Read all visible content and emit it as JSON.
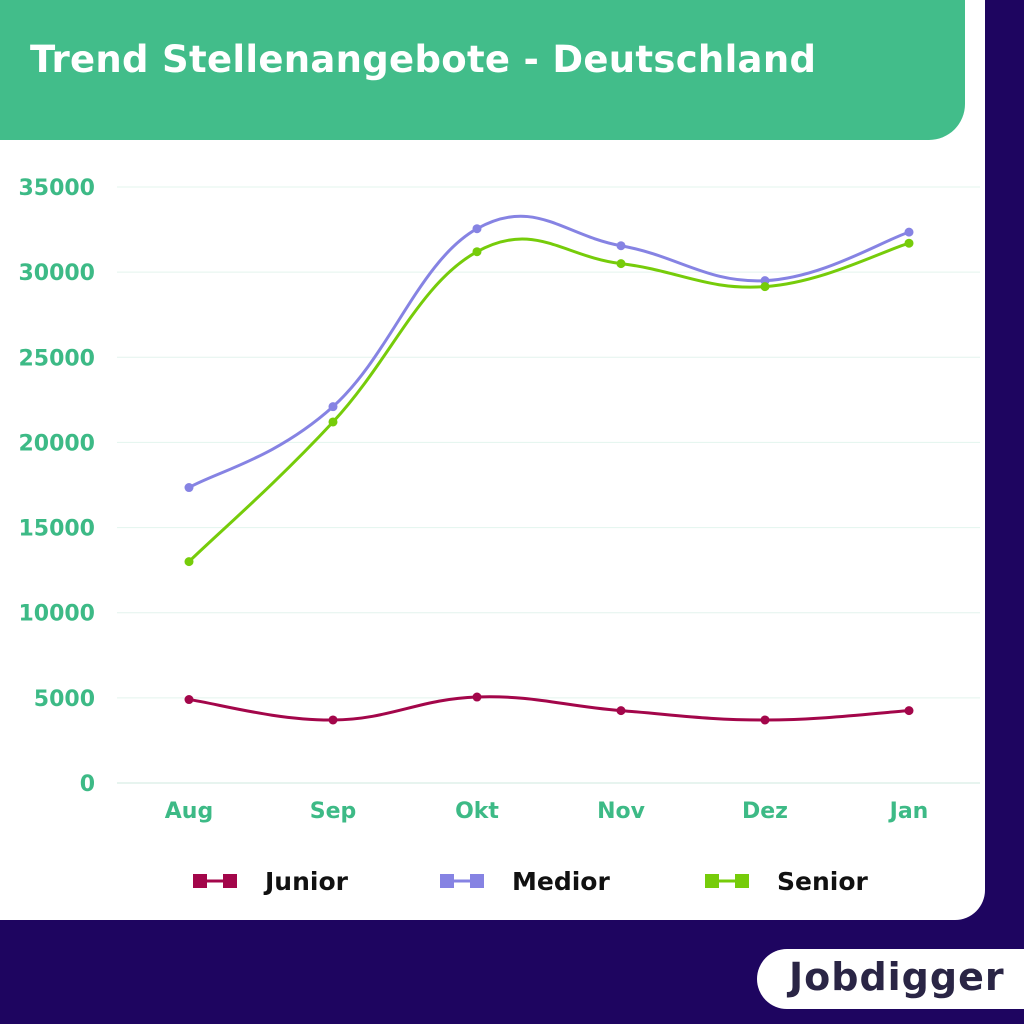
{
  "header": {
    "title": "Trend Stellenangebote - Deutschland"
  },
  "logo": {
    "text": "Jobdigger"
  },
  "colors": {
    "background": "#1e0560",
    "header": "#42bd8a",
    "axis_text": "#3dba86",
    "grid": "#e3f4ee"
  },
  "chart_data": {
    "type": "line",
    "title": "Trend Stellenangebote - Deutschland",
    "xlabel": "",
    "ylabel": "",
    "categories": [
      "Aug",
      "Sep",
      "Okt",
      "Nov",
      "Dez",
      "Jan"
    ],
    "ylim": [
      0,
      35000
    ],
    "yticks": [
      0,
      5000,
      10000,
      15000,
      20000,
      25000,
      30000,
      35000
    ],
    "grid": true,
    "legend": "bottom",
    "smooth": true,
    "series": [
      {
        "name": "Junior",
        "color": "#a3064a",
        "values": [
          4900,
          3700,
          5050,
          4250,
          3700,
          4250
        ]
      },
      {
        "name": "Medior",
        "color": "#8683e3",
        "values": [
          17350,
          22100,
          32550,
          31550,
          29500,
          32350
        ]
      },
      {
        "name": "Senior",
        "color": "#76cc0a",
        "values": [
          13000,
          21200,
          31200,
          30500,
          29150,
          31700
        ]
      }
    ]
  }
}
